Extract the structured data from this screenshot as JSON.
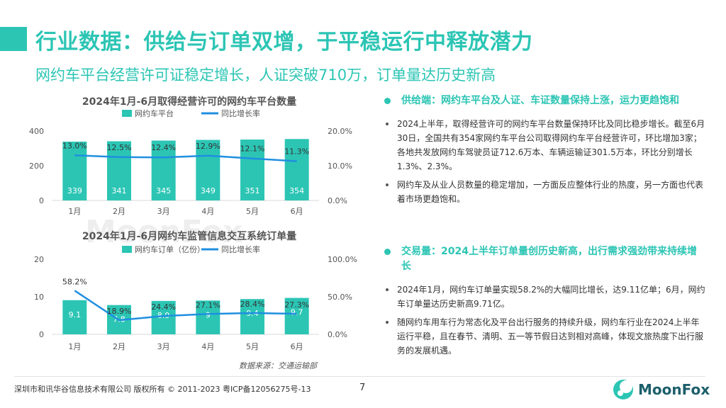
{
  "header": {
    "title": "行业数据：供给与订单双增，于平稳运行中释放潜力",
    "subtitle": "网约车平台经营许可证稳定增长，人证突破710万，订单量达历史新高"
  },
  "chart_data": [
    {
      "type": "bar",
      "title": "2024年1月-6月取得经营许可的网约车平台数量",
      "categories": [
        "1月",
        "2月",
        "3月",
        "4月",
        "5月",
        "6月"
      ],
      "series": [
        {
          "name": "网约车平台",
          "type": "bar",
          "values": [
            339,
            341,
            345,
            349,
            351,
            354
          ],
          "color": "#2cc5b4"
        },
        {
          "name": "同比增长率",
          "type": "line",
          "axis": "right",
          "values": [
            13.0,
            12.5,
            12.4,
            12.9,
            12.1,
            11.3
          ],
          "labels": [
            "13.0%",
            "12.5%",
            "12.4%",
            "12.9%",
            "12.1%",
            "11.3%"
          ],
          "color": "#1f8fe0"
        }
      ],
      "ylim": [
        0,
        400
      ],
      "yticks": [
        "0",
        "200",
        "400"
      ],
      "y2lim": [
        0,
        20
      ],
      "y2ticks": [
        "0.0%",
        "10.0%",
        "20.0%"
      ],
      "legend": "top"
    },
    {
      "type": "bar",
      "title": "2024年1月-6月网约车监管信息交互系统订单量",
      "categories": [
        "1月",
        "2月",
        "3月",
        "4月",
        "5月",
        "6月"
      ],
      "series": [
        {
          "name": "网约车订单（亿份）",
          "type": "bar",
          "values": [
            9.1,
            7.8,
            8.9,
            9.0,
            9.4,
            9.7
          ],
          "color": "#2cc5b4"
        },
        {
          "name": "同比增长率",
          "type": "line",
          "axis": "right",
          "values": [
            58.2,
            18.9,
            24.4,
            27.1,
            28.4,
            27.3
          ],
          "labels": [
            "58.2%",
            "18.9%",
            "24.4%",
            "27.1%",
            "28.4%",
            "27.3%"
          ],
          "color": "#1f8fe0"
        }
      ],
      "ylim": [
        0,
        20
      ],
      "yticks": [
        "0",
        "10",
        "20"
      ],
      "y2lim": [
        0,
        100
      ],
      "y2ticks": [
        "0.0%",
        "50.0%",
        "100.0%"
      ],
      "legend": "top"
    }
  ],
  "source_note": "数据来源：交通运输部",
  "watermark": "MoonFox",
  "supply": {
    "heading": "供给端：网约车平台及人证、车证数量保持上涨，运力更趋饱和",
    "bullets": [
      "2024上半年，取得经营许可的网约车平台数量保持环比及同比稳步增长。截至6月30日，全国共有354家网约车平台公司取得网约车平台经营许可，环比增加3家；各地共发放网约车驾驶员证712.6万本、车辆运输证301.5万本，环比分别增长1.3%、2.3%。",
      "网约车及从业人员数量的稳定增加，一方面反应整体行业的热度，另一方面也代表着市场更趋饱和。"
    ]
  },
  "trade": {
    "heading": "交易量：2024上半年订单量创历史新高，出行需求强劲带来持续增长",
    "bullets": [
      "2024年1月，网约车订单量实现58.2%的大幅同比增长，达9.11亿单；6月，网约车订单量达历史新高9.71亿。",
      "随网约车用车行为常态化及平台出行服务的持续升级，网约车行业在2024上半年运行平稳，且在春节、清明、五一等节假日达到相对高峰，体现文旅热度下出行服务的发展机遇。"
    ]
  },
  "footer": {
    "copyright": "深圳市和讯华谷信息技术有限公司 版权所有 © 2011-2023 粤ICP备12056275号-13",
    "page": "7",
    "logo": "MoonFox"
  },
  "colors": {
    "accent": "#2cc5b4",
    "line": "#1f8fe0",
    "logo": "#1d5f6b"
  }
}
